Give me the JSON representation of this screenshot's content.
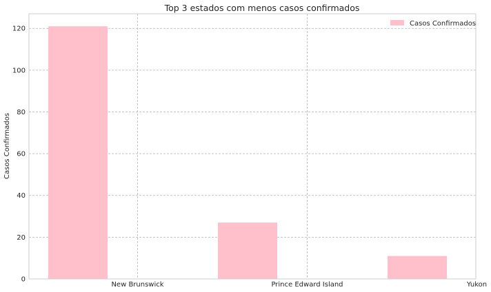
{
  "chart_data": {
    "type": "bar",
    "title": "Top 3 estados com menos casos confirmados",
    "xlabel": "",
    "ylabel": "Casos Confirmados",
    "categories": [
      "New Brunswick",
      "Prince Edward Island",
      "Yukon"
    ],
    "series": [
      {
        "name": "Casos Confirmados",
        "values": [
          121,
          27,
          11
        ],
        "color": "#ffc0cb"
      }
    ],
    "yticks": [
      0,
      20,
      40,
      60,
      80,
      100,
      120
    ],
    "ylim": [
      0,
      127
    ],
    "grid": true,
    "legend_position": "top-right"
  }
}
